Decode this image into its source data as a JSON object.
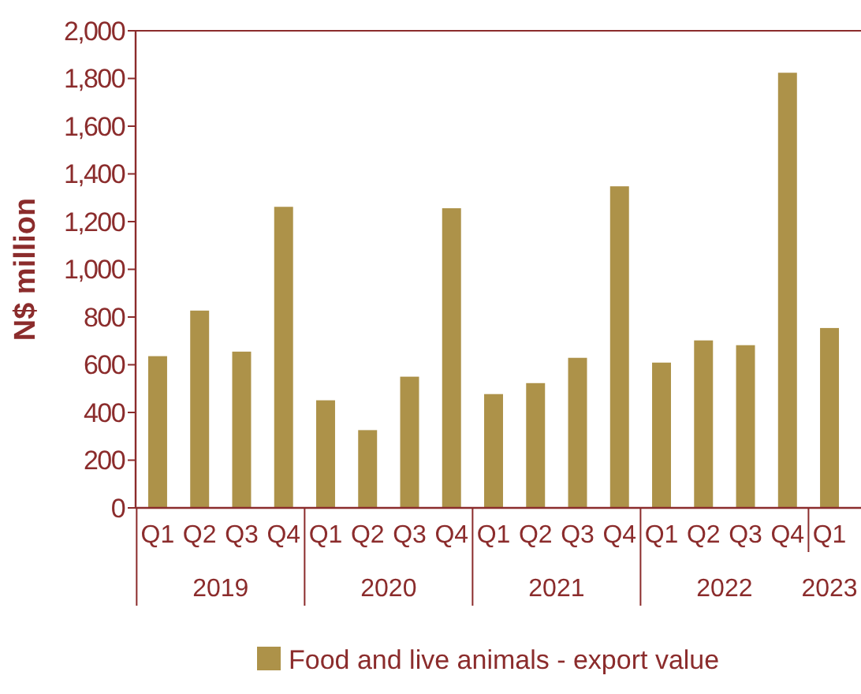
{
  "chart_data": {
    "type": "bar",
    "ylabel": "N$ million",
    "categories": [
      "Q1",
      "Q2",
      "Q3",
      "Q4",
      "Q1",
      "Q2",
      "Q3",
      "Q4",
      "Q1",
      "Q2",
      "Q3",
      "Q4",
      "Q1",
      "Q2",
      "Q3",
      "Q4",
      "Q1"
    ],
    "annotations": [
      "2019",
      "2020",
      "2021",
      "2022",
      "2023"
    ],
    "series": [
      {
        "name": "Food and live animals - export value",
        "color": "#ad9249",
        "values": [
          636,
          827,
          655,
          1262,
          451,
          326,
          550,
          1256,
          477,
          523,
          629,
          1348,
          609,
          702,
          682,
          1824,
          754
        ]
      }
    ],
    "ylim": [
      0,
      2000
    ],
    "yticks": [
      {
        "value": 0,
        "label": "0"
      },
      {
        "value": 200,
        "label": "200"
      },
      {
        "value": 400,
        "label": "400"
      },
      {
        "value": 600,
        "label": "600"
      },
      {
        "value": 800,
        "label": "800"
      },
      {
        "value": 1000,
        "label": "1,000"
      },
      {
        "value": 1200,
        "label": "1,200"
      },
      {
        "value": 1400,
        "label": "1,400"
      },
      {
        "value": 1600,
        "label": "1,600"
      },
      {
        "value": 1800,
        "label": "1,800"
      },
      {
        "value": 2000,
        "label": "2,000"
      }
    ],
    "grid": false,
    "legend": "bottom"
  }
}
